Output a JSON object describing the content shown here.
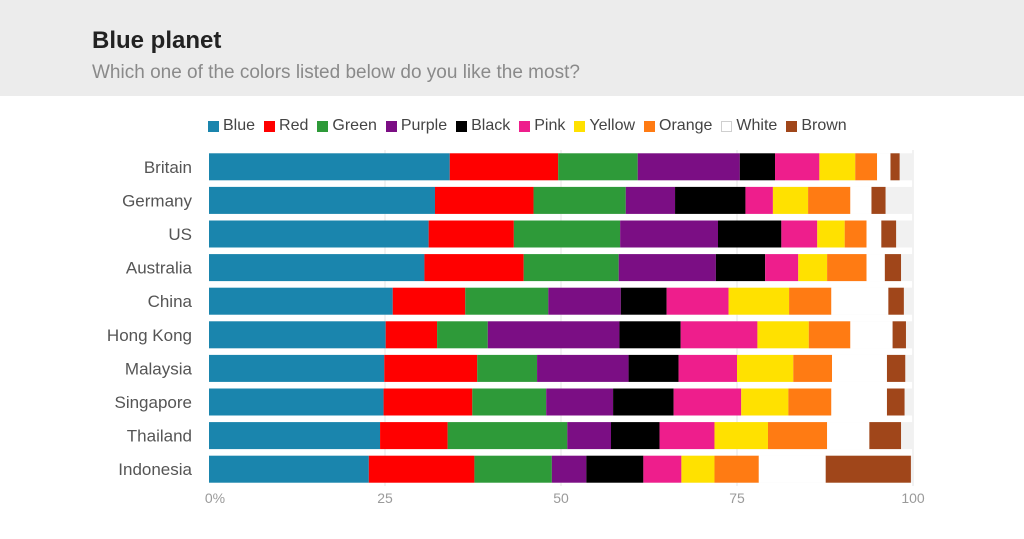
{
  "header": {
    "title": "Blue planet",
    "subtitle": "Which one of the colors listed below do you like the most?"
  },
  "chart_data": {
    "type": "bar",
    "orientation": "horizontal",
    "stacked": true,
    "categories": [
      "Britain",
      "Germany",
      "US",
      "Australia",
      "China",
      "Hong Kong",
      "Malaysia",
      "Singapore",
      "Thailand",
      "Indonesia"
    ],
    "legend_placement": "top",
    "x_ticks": [
      0,
      25,
      50,
      75,
      100
    ],
    "x_tick_labels": [
      "0%",
      "25",
      "50",
      "75",
      "100"
    ],
    "xlim": [
      0,
      100
    ],
    "grid": true,
    "series": [
      {
        "name": "Blue",
        "color": "#1a85ad",
        "values": [
          34.2,
          32.1,
          31.2,
          30.6,
          26.1,
          25.1,
          24.9,
          24.8,
          24.3,
          22.7
        ]
      },
      {
        "name": "Red",
        "color": "#ff0000",
        "values": [
          15.4,
          14.0,
          12.1,
          14.1,
          10.3,
          7.3,
          13.2,
          12.6,
          9.6,
          15.0
        ]
      },
      {
        "name": "Green",
        "color": "#2e9a39",
        "values": [
          11.3,
          13.1,
          15.1,
          13.5,
          11.8,
          7.2,
          8.5,
          10.5,
          17.0,
          11.0
        ]
      },
      {
        "name": "Purple",
        "color": "#7b0e84",
        "values": [
          14.5,
          7.0,
          13.9,
          13.8,
          10.3,
          18.7,
          13.0,
          9.5,
          6.2,
          4.9
        ]
      },
      {
        "name": "Black",
        "color": "#000000",
        "values": [
          5.0,
          10.0,
          9.0,
          7.0,
          6.5,
          8.7,
          7.1,
          8.6,
          6.9,
          8.1
        ]
      },
      {
        "name": "Pink",
        "color": "#ee1e8c",
        "values": [
          6.3,
          3.9,
          5.1,
          4.7,
          8.8,
          10.9,
          8.3,
          9.6,
          7.8,
          5.4
        ]
      },
      {
        "name": "Yellow",
        "color": "#ffe100",
        "values": [
          5.1,
          5.0,
          3.9,
          4.1,
          8.6,
          7.3,
          8.0,
          6.7,
          7.6,
          4.7
        ]
      },
      {
        "name": "Orange",
        "color": "#ff7b13",
        "values": [
          3.1,
          6.0,
          3.1,
          5.6,
          6.0,
          5.9,
          5.5,
          6.1,
          8.4,
          6.3
        ]
      },
      {
        "name": "White",
        "color": "#ffffff",
        "values": [
          1.9,
          3.0,
          2.1,
          2.6,
          8.1,
          6.0,
          7.8,
          7.9,
          6.0,
          9.5
        ]
      },
      {
        "name": "Brown",
        "color": "#a0461a",
        "values": [
          1.3,
          2.0,
          2.1,
          2.3,
          2.2,
          1.9,
          2.6,
          2.5,
          4.5,
          12.1
        ]
      }
    ]
  }
}
